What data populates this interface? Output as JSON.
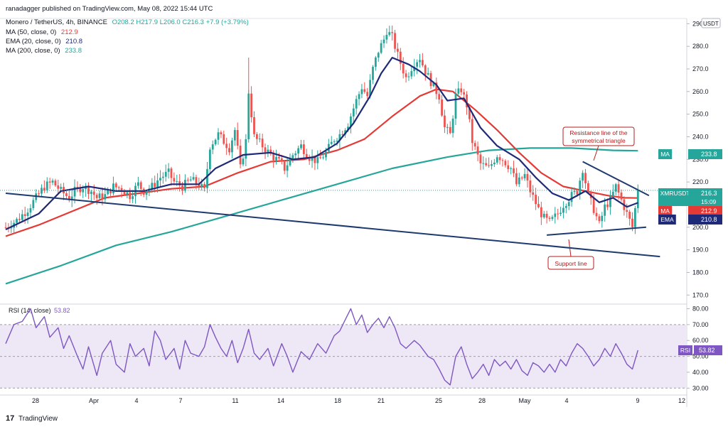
{
  "header": {
    "published": "ranadagger published on TradingView.com, May 08, 2022 15:44 UTC",
    "symbol": "Monero / TetherUS, 4h, BINANCE",
    "ohlc": "O208.2 H217.9 L206.0 C216.3 +7.9 (+3.79%)",
    "ind_ma50": "MA (50, close, 0)",
    "ind_ma50_val": "212.9",
    "ind_ema20": "EMA (20, close, 0)",
    "ind_ema20_val": "210.8",
    "ind_ma200": "MA (200, close, 0)",
    "ind_ma200_val": "233.8"
  },
  "currency": "USDT",
  "rsi_label": "RSI (14, close)",
  "rsi_label_val": "53.82",
  "logo_text": "TradingView",
  "colors": {
    "up": "#26a69a",
    "down": "#ef5350",
    "ema20": "#1e2a78",
    "ma50": "#e53935",
    "ma200": "#26a69a",
    "trend": "#1e3a6e",
    "rsi": "#7e57c2",
    "rsi_band": "#ede7f6",
    "annot": "#b71c1c"
  },
  "chart_data": {
    "type": "candlestick",
    "price_axis": {
      "ticks": [
        "170.0",
        "180.0",
        "190.0",
        "200.0",
        "210.0",
        "220.0",
        "230.0",
        "240.0",
        "250.0",
        "260.0",
        "270.0",
        "280.0",
        "290.0"
      ],
      "range": [
        166,
        292
      ]
    },
    "rsi_axis": {
      "ticks": [
        "30.00",
        "40.00",
        "50.00",
        "60.00",
        "70.00",
        "80.00"
      ],
      "range": [
        27,
        82
      ],
      "levels": [
        30,
        50,
        70
      ]
    },
    "x_axis": {
      "labels": [
        "28",
        "Apr",
        "4",
        "7",
        "11",
        "14",
        "18",
        "21",
        "25",
        "28",
        "May",
        "4",
        "9",
        "12"
      ]
    },
    "price_labels": [
      {
        "tag": "MA",
        "value": "233.8",
        "color": "#26a69a"
      },
      {
        "tag": "XMRUSDT",
        "value": "216.3",
        "sub": "15:09",
        "color": "#26a69a"
      },
      {
        "tag": "MA",
        "value": "212.9",
        "color": "#e53935"
      },
      {
        "tag": "EMA",
        "value": "210.8",
        "color": "#1e2a78"
      }
    ],
    "rsi_value_label": {
      "tag": "RSI",
      "value": "53.82"
    },
    "price_path": [
      [
        0,
        200
      ],
      [
        4,
        203
      ],
      [
        8,
        208
      ],
      [
        11,
        213
      ],
      [
        14,
        218
      ],
      [
        17,
        220
      ],
      [
        20,
        216
      ],
      [
        23,
        213
      ],
      [
        25,
        216
      ],
      [
        28,
        218
      ],
      [
        31,
        216
      ],
      [
        33,
        213
      ],
      [
        36,
        214
      ],
      [
        39,
        218
      ],
      [
        42,
        217
      ],
      [
        45,
        214
      ],
      [
        48,
        219
      ],
      [
        50,
        216
      ],
      [
        53,
        218
      ],
      [
        56,
        222
      ],
      [
        59,
        224
      ],
      [
        61,
        220
      ],
      [
        64,
        218
      ],
      [
        67,
        221
      ],
      [
        70,
        219
      ],
      [
        72,
        216
      ],
      [
        74,
        236
      ],
      [
        77,
        241
      ],
      [
        79,
        238
      ],
      [
        81,
        235
      ],
      [
        83,
        243
      ],
      [
        85,
        226
      ],
      [
        87,
        238
      ],
      [
        88,
        260
      ],
      [
        90,
        240
      ],
      [
        93,
        236
      ],
      [
        96,
        232
      ],
      [
        99,
        229
      ],
      [
        101,
        226
      ],
      [
        104,
        232
      ],
      [
        107,
        236
      ],
      [
        110,
        231
      ],
      [
        113,
        229
      ],
      [
        116,
        233
      ],
      [
        119,
        239
      ],
      [
        121,
        241
      ],
      [
        124,
        246
      ],
      [
        127,
        256
      ],
      [
        129,
        262
      ],
      [
        131,
        258
      ],
      [
        133,
        270
      ],
      [
        135,
        278
      ],
      [
        137,
        283
      ],
      [
        138,
        287
      ],
      [
        140,
        284
      ],
      [
        142,
        276
      ],
      [
        145,
        266
      ],
      [
        148,
        273
      ],
      [
        150,
        275
      ],
      [
        152,
        269
      ],
      [
        155,
        262
      ],
      [
        157,
        258
      ],
      [
        159,
        244
      ],
      [
        161,
        241
      ],
      [
        163,
        258
      ],
      [
        165,
        261
      ],
      [
        167,
        254
      ],
      [
        169,
        238
      ],
      [
        172,
        228
      ],
      [
        175,
        226
      ],
      [
        178,
        232
      ],
      [
        180,
        230
      ],
      [
        183,
        226
      ],
      [
        185,
        219
      ],
      [
        188,
        223
      ],
      [
        190,
        216
      ],
      [
        193,
        208
      ],
      [
        195,
        204
      ],
      [
        197,
        202
      ],
      [
        200,
        206
      ],
      [
        202,
        210
      ],
      [
        205,
        214
      ],
      [
        207,
        216
      ],
      [
        209,
        226
      ],
      [
        211,
        214
      ],
      [
        213,
        208
      ],
      [
        215,
        201
      ],
      [
        217,
        209
      ],
      [
        219,
        212
      ],
      [
        221,
        218
      ],
      [
        223,
        212
      ],
      [
        225,
        206
      ],
      [
        227,
        200
      ],
      [
        229,
        216.3
      ]
    ],
    "series": [
      {
        "name": "EMA (20, close, 0)",
        "current": "210.8"
      },
      {
        "name": "MA (50, close, 0)",
        "current": "212.9"
      },
      {
        "name": "MA (200, close, 0)",
        "current": "233.8"
      },
      {
        "name": "RSI (14, close)",
        "current": "53.82"
      }
    ],
    "ema20": [
      [
        0,
        199
      ],
      [
        12,
        206
      ],
      [
        20,
        216
      ],
      [
        30,
        218
      ],
      [
        40,
        216
      ],
      [
        50,
        216
      ],
      [
        60,
        219
      ],
      [
        70,
        219
      ],
      [
        76,
        226
      ],
      [
        86,
        232
      ],
      [
        96,
        233
      ],
      [
        104,
        230
      ],
      [
        112,
        231
      ],
      [
        120,
        237
      ],
      [
        126,
        246
      ],
      [
        132,
        258
      ],
      [
        136,
        268
      ],
      [
        140,
        275
      ],
      [
        146,
        272
      ],
      [
        150,
        269
      ],
      [
        156,
        263
      ],
      [
        160,
        256
      ],
      [
        166,
        257
      ],
      [
        172,
        244
      ],
      [
        178,
        236
      ],
      [
        186,
        230
      ],
      [
        192,
        222
      ],
      [
        198,
        215
      ],
      [
        204,
        212
      ],
      [
        210,
        216
      ],
      [
        215,
        211
      ],
      [
        220,
        213
      ],
      [
        225,
        209
      ],
      [
        229,
        210.8
      ]
    ],
    "ma50": [
      [
        0,
        196
      ],
      [
        12,
        201
      ],
      [
        24,
        207
      ],
      [
        36,
        213
      ],
      [
        48,
        215
      ],
      [
        60,
        217
      ],
      [
        72,
        218
      ],
      [
        84,
        224
      ],
      [
        96,
        229
      ],
      [
        108,
        230
      ],
      [
        120,
        234
      ],
      [
        130,
        239
      ],
      [
        140,
        249
      ],
      [
        150,
        258
      ],
      [
        156,
        261
      ],
      [
        162,
        260
      ],
      [
        170,
        252
      ],
      [
        178,
        243
      ],
      [
        186,
        233
      ],
      [
        194,
        224
      ],
      [
        202,
        218
      ],
      [
        210,
        216
      ],
      [
        218,
        214
      ],
      [
        224,
        213
      ],
      [
        229,
        212.9
      ]
    ],
    "ma200": [
      [
        0,
        175
      ],
      [
        20,
        183
      ],
      [
        40,
        192
      ],
      [
        60,
        198
      ],
      [
        80,
        205
      ],
      [
        100,
        212
      ],
      [
        120,
        219
      ],
      [
        140,
        226
      ],
      [
        160,
        231
      ],
      [
        175,
        234
      ],
      [
        190,
        235
      ],
      [
        205,
        235
      ],
      [
        220,
        234
      ],
      [
        229,
        233.8
      ]
    ],
    "rsi": [
      [
        0,
        58
      ],
      [
        3,
        70
      ],
      [
        6,
        72
      ],
      [
        9,
        80
      ],
      [
        11,
        68
      ],
      [
        14,
        75
      ],
      [
        16,
        62
      ],
      [
        19,
        68
      ],
      [
        21,
        55
      ],
      [
        23,
        63
      ],
      [
        26,
        50
      ],
      [
        28,
        42
      ],
      [
        30,
        56
      ],
      [
        33,
        38
      ],
      [
        35,
        52
      ],
      [
        38,
        60
      ],
      [
        40,
        45
      ],
      [
        43,
        40
      ],
      [
        45,
        58
      ],
      [
        47,
        50
      ],
      [
        50,
        55
      ],
      [
        52,
        44
      ],
      [
        54,
        66
      ],
      [
        56,
        60
      ],
      [
        58,
        48
      ],
      [
        61,
        55
      ],
      [
        63,
        42
      ],
      [
        65,
        60
      ],
      [
        67,
        52
      ],
      [
        70,
        50
      ],
      [
        72,
        56
      ],
      [
        74,
        70
      ],
      [
        76,
        62
      ],
      [
        78,
        55
      ],
      [
        80,
        50
      ],
      [
        82,
        60
      ],
      [
        84,
        46
      ],
      [
        86,
        55
      ],
      [
        88,
        67
      ],
      [
        90,
        52
      ],
      [
        92,
        48
      ],
      [
        95,
        55
      ],
      [
        97,
        44
      ],
      [
        100,
        58
      ],
      [
        102,
        50
      ],
      [
        104,
        40
      ],
      [
        107,
        53
      ],
      [
        110,
        48
      ],
      [
        113,
        58
      ],
      [
        116,
        52
      ],
      [
        119,
        63
      ],
      [
        121,
        66
      ],
      [
        123,
        73
      ],
      [
        125,
        80
      ],
      [
        127,
        70
      ],
      [
        129,
        76
      ],
      [
        131,
        65
      ],
      [
        133,
        70
      ],
      [
        135,
        74
      ],
      [
        137,
        68
      ],
      [
        139,
        75
      ],
      [
        141,
        68
      ],
      [
        143,
        58
      ],
      [
        145,
        55
      ],
      [
        148,
        60
      ],
      [
        150,
        57
      ],
      [
        153,
        50
      ],
      [
        155,
        48
      ],
      [
        157,
        42
      ],
      [
        159,
        35
      ],
      [
        161,
        32
      ],
      [
        163,
        50
      ],
      [
        165,
        56
      ],
      [
        167,
        45
      ],
      [
        169,
        36
      ],
      [
        171,
        40
      ],
      [
        173,
        45
      ],
      [
        175,
        38
      ],
      [
        177,
        48
      ],
      [
        179,
        44
      ],
      [
        181,
        47
      ],
      [
        183,
        42
      ],
      [
        185,
        48
      ],
      [
        187,
        41
      ],
      [
        189,
        38
      ],
      [
        191,
        46
      ],
      [
        193,
        44
      ],
      [
        195,
        40
      ],
      [
        197,
        45
      ],
      [
        199,
        40
      ],
      [
        201,
        48
      ],
      [
        203,
        44
      ],
      [
        205,
        52
      ],
      [
        207,
        58
      ],
      [
        209,
        55
      ],
      [
        211,
        50
      ],
      [
        213,
        44
      ],
      [
        215,
        48
      ],
      [
        217,
        55
      ],
      [
        219,
        50
      ],
      [
        221,
        58
      ],
      [
        223,
        52
      ],
      [
        225,
        45
      ],
      [
        227,
        42
      ],
      [
        229,
        53.82
      ]
    ],
    "trendlines": [
      {
        "name": "long-support",
        "from": [
          0,
          215
        ],
        "to": [
          237,
          187
        ]
      },
      {
        "name": "triangle-resistance",
        "from": [
          209,
          229
        ],
        "to": [
          233,
          214
        ]
      },
      {
        "name": "triangle-support",
        "from": [
          196,
          196.5
        ],
        "to": [
          232,
          200
        ]
      }
    ],
    "annotations": [
      {
        "text": "Resistance line of the symmetrical triangle"
      },
      {
        "text": "Support line"
      }
    ]
  }
}
